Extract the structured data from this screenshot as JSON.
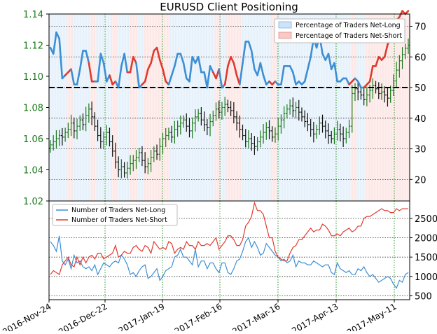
{
  "chart_data": [
    {
      "type": "line",
      "panel": "upper",
      "title": "EURUSD Client Positioning",
      "left_axis": {
        "ylim": [
          1.02,
          1.14
        ],
        "ticks": [
          "1.14",
          "1.12",
          "1.10",
          "1.08",
          "1.06",
          "1.04",
          "1.02"
        ],
        "color": "#1a7a1a"
      },
      "right_axis": {
        "ylim": [
          13,
          74
        ],
        "ticks": [
          "70",
          "60",
          "50",
          "40",
          "30",
          "20"
        ]
      },
      "reference_line": 50,
      "legend": {
        "placement": "top-right",
        "entries": [
          "Percentage of Traders Net-Long",
          "Percentage of Traders Net-Short"
        ]
      },
      "grid": true,
      "x_ticks": [
        "2016-Nov-24",
        "2016-Dec-22",
        "2017-Jan-19",
        "2017-Feb-16",
        "2017-Mar-16",
        "2017-Apr-13",
        "2017-May-11"
      ],
      "price_ohlc_closes": [
        1.056,
        1.058,
        1.06,
        1.062,
        1.061,
        1.064,
        1.066,
        1.07,
        1.065,
        1.068,
        1.072,
        1.069,
        1.075,
        1.079,
        1.074,
        1.068,
        1.062,
        1.058,
        1.061,
        1.064,
        1.058,
        1.052,
        1.045,
        1.04,
        1.042,
        1.038,
        1.041,
        1.044,
        1.046,
        1.048,
        1.051,
        1.046,
        1.042,
        1.044,
        1.048,
        1.052,
        1.05,
        1.055,
        1.06,
        1.062,
        1.064,
        1.061,
        1.066,
        1.068,
        1.07,
        1.072,
        1.068,
        1.065,
        1.07,
        1.074,
        1.076,
        1.072,
        1.069,
        1.067,
        1.071,
        1.075,
        1.079,
        1.077,
        1.08,
        1.082,
        1.08,
        1.078,
        1.074,
        1.07,
        1.066,
        1.062,
        1.058,
        1.06,
        1.057,
        1.055,
        1.058,
        1.061,
        1.064,
        1.067,
        1.065,
        1.061,
        1.063,
        1.068,
        1.072,
        1.076,
        1.079,
        1.081,
        1.078,
        1.08,
        1.077,
        1.074,
        1.071,
        1.069,
        1.066,
        1.063,
        1.066,
        1.07,
        1.068,
        1.065,
        1.062,
        1.06,
        1.063,
        1.066,
        1.063,
        1.06,
        1.064,
        1.068,
        1.089,
        1.092,
        1.09,
        1.088,
        1.085,
        1.088,
        1.091,
        1.094,
        1.092,
        1.089,
        1.09,
        1.088,
        1.086,
        1.091,
        1.097,
        1.104,
        1.11,
        1.114,
        1.118,
        1.12,
        1.124,
        1.126
      ],
      "series": [
        {
          "name": "Percentage of Traders Net-Long",
          "color": "#3c8fd4",
          "values": [
            63,
            61,
            68,
            66,
            53,
            54,
            45,
            44,
            51,
            51,
            56,
            62,
            62,
            58,
            48,
            48,
            52,
            61,
            58,
            52,
            54,
            49,
            48,
            50,
            57,
            61,
            55,
            45,
            40,
            42,
            50,
            51,
            48,
            44,
            42,
            38,
            37,
            41,
            44,
            48,
            49,
            54,
            57,
            61,
            61,
            58,
            53,
            52,
            60,
            58,
            60,
            55,
            55,
            50,
            57,
            55,
            47,
            44,
            50,
            51,
            43,
            40,
            42,
            46,
            49,
            58,
            65,
            65,
            62,
            56,
            54,
            58,
            54,
            51,
            52,
            49,
            48,
            51,
            51,
            57,
            57,
            57,
            55,
            51,
            52,
            51,
            52,
            56,
            60,
            66,
            63,
            67,
            61,
            59,
            61,
            56,
            58,
            52,
            52,
            53,
            53,
            51,
            48,
            47,
            52,
            50,
            50,
            49,
            48,
            43,
            43,
            40,
            41,
            40,
            36,
            34,
            34,
            28,
            27,
            25,
            26,
            25
          ]
        },
        {
          "name": "Percentage of Traders Net-Short",
          "color": "#e03a2f",
          "values": [
            37,
            39,
            32,
            34,
            47,
            46,
            55,
            56,
            49,
            49,
            44,
            38,
            38,
            42,
            52,
            52,
            48,
            39,
            42,
            48,
            46,
            51,
            52,
            50,
            43,
            39,
            45,
            55,
            60,
            58,
            50,
            49,
            52,
            56,
            58,
            62,
            63,
            59,
            56,
            52,
            51,
            46,
            43,
            39,
            39,
            42,
            47,
            48,
            40,
            42,
            40,
            45,
            45,
            50,
            43,
            45,
            53,
            56,
            50,
            49,
            57,
            60,
            58,
            54,
            51,
            42,
            35,
            35,
            38,
            44,
            46,
            42,
            46,
            49,
            48,
            51,
            52,
            49,
            49,
            43,
            43,
            43,
            45,
            49,
            48,
            49,
            48,
            44,
            40,
            34,
            37,
            33,
            39,
            41,
            39,
            44,
            42,
            48,
            48,
            47,
            47,
            49,
            52,
            53,
            48,
            50,
            50,
            51,
            52,
            57,
            57,
            60,
            59,
            60,
            64,
            66,
            66,
            72,
            73,
            75,
            74,
            75
          ]
        }
      ]
    },
    {
      "type": "line",
      "panel": "lower",
      "y_ticks": [
        "2500",
        "2000",
        "1500",
        "1000",
        "500"
      ],
      "ylim": [
        400,
        2950
      ],
      "legend": {
        "placement": "top-left",
        "entries": [
          "Number of Traders Net-Long",
          "Number of Traders Net-Short"
        ]
      },
      "grid": true,
      "series": [
        {
          "name": "Number of Traders Net-Long",
          "color": "#3c8fd4",
          "values": [
            1900,
            1800,
            1650,
            2050,
            1400,
            1300,
            1450,
            1200,
            1550,
            1350,
            1400,
            1250,
            1200,
            1250,
            1150,
            1300,
            1050,
            1200,
            1350,
            1300,
            1250,
            1350,
            1400,
            1350,
            1550,
            1450,
            1300,
            1050,
            1100,
            1000,
            1150,
            1250,
            1300,
            950,
            1000,
            1100,
            1200,
            900,
            1000,
            1150,
            1200,
            1250,
            1500,
            1550,
            1700,
            1500,
            1500,
            1400,
            1300,
            1700,
            1250,
            1400,
            1400,
            1200,
            1350,
            1350,
            1200,
            1100,
            1350,
            1350,
            1100,
            1050,
            1200,
            1400,
            1450,
            1650,
            1900,
            2000,
            1750,
            1900,
            1750,
            1550,
            1600,
            1850,
            1750,
            1650,
            1550,
            1500,
            1400,
            1450,
            1350,
            1400,
            1550,
            1250,
            1400,
            1350,
            1350,
            1300,
            1300,
            1400,
            1350,
            1300,
            1250,
            1300,
            1300,
            1100,
            1050,
            1350,
            1200,
            1150,
            1100,
            1150,
            1050,
            1050,
            1200,
            1150,
            1250,
            1100,
            1000,
            1050,
            950,
            850,
            900,
            950,
            1000,
            950,
            800,
            700,
            900,
            850,
            1050,
            1100
          ]
        },
        {
          "name": "Number of Traders Net-Short",
          "color": "#e03a2f",
          "values": [
            1050,
            1150,
            1100,
            1050,
            1300,
            1400,
            1500,
            1300,
            1250,
            1500,
            1300,
            1500,
            1350,
            1500,
            1550,
            1450,
            1600,
            1600,
            1450,
            1500,
            1550,
            1600,
            1800,
            1500,
            1550,
            1650,
            1600,
            1600,
            1750,
            1800,
            1700,
            1650,
            1800,
            1750,
            1600,
            1900,
            1800,
            1700,
            1750,
            1700,
            1900,
            1850,
            1600,
            1700,
            1750,
            1700,
            1900,
            1800,
            1800,
            1700,
            1900,
            1800,
            1800,
            1850,
            1800,
            1900,
            2000,
            1700,
            1800,
            1900,
            2050,
            2050,
            1950,
            1800,
            1800,
            1950,
            2300,
            2400,
            2550,
            2900,
            2700,
            2700,
            2600,
            2300,
            2000,
            2000,
            1650,
            1500,
            1450,
            1400,
            1400,
            1600,
            1750,
            1800,
            1950,
            1950,
            2050,
            2150,
            2250,
            2150,
            2200,
            2200,
            2350,
            2300,
            2200,
            2050,
            2050,
            2100,
            2050,
            2150,
            2200,
            2250,
            2150,
            2200,
            2300,
            2300,
            2500,
            2550,
            2550,
            2600,
            2650,
            2700,
            2750,
            2700,
            2700,
            2650,
            2650,
            2750,
            2700,
            2750,
            2750,
            2750
          ]
        }
      ]
    }
  ]
}
